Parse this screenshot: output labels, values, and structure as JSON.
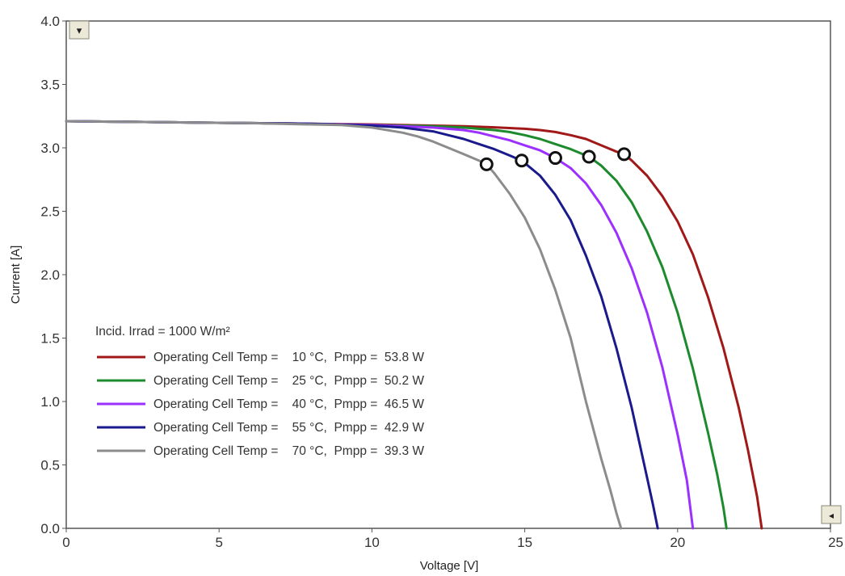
{
  "chart_data": {
    "type": "line",
    "title": "",
    "xlabel": "Voltage [V]",
    "ylabel": "Current [A]",
    "xlim": [
      0,
      25
    ],
    "ylim": [
      0,
      4.0
    ],
    "x_ticks": [
      "0",
      "5",
      "10",
      "15",
      "20",
      "25"
    ],
    "y_ticks": [
      "0.0",
      "0.5",
      "1.0",
      "1.5",
      "2.0",
      "2.5",
      "3.0",
      "3.5",
      "4.0"
    ],
    "grid": false,
    "legend_position": "lower-left",
    "legend_header": "Incid. Irrad = 1000 W/m²",
    "mpp_marker": "open-circle",
    "series": [
      {
        "name": "Operating Cell Temp =    10 °C,  Pmpp =  53.8 W",
        "color": "#a01818",
        "mpp": [
          18.25,
          2.95
        ],
        "x": [
          0,
          2,
          4,
          6,
          8,
          10,
          12,
          13,
          14,
          15,
          15.5,
          16,
          16.5,
          17,
          17.5,
          18,
          18.25,
          18.5,
          19,
          19.5,
          20,
          20.5,
          21,
          21.5,
          22,
          22.3,
          22.6,
          22.75
        ],
        "y": [
          3.21,
          3.205,
          3.2,
          3.195,
          3.19,
          3.185,
          3.175,
          3.17,
          3.162,
          3.15,
          3.14,
          3.125,
          3.1,
          3.07,
          3.02,
          2.97,
          2.95,
          2.9,
          2.78,
          2.62,
          2.42,
          2.16,
          1.82,
          1.42,
          0.95,
          0.62,
          0.25,
          0.0
        ]
      },
      {
        "name": "Operating Cell Temp =    25 °C,  Pmpp =  50.2 W",
        "color": "#1e8a2e",
        "mpp": [
          17.1,
          2.93
        ],
        "x": [
          0,
          2,
          4,
          6,
          8,
          10,
          11,
          12,
          13,
          14,
          14.5,
          15,
          15.5,
          16,
          16.5,
          17.1,
          17.5,
          18,
          18.5,
          19,
          19.5,
          20,
          20.5,
          21,
          21.3,
          21.5,
          21.6
        ],
        "y": [
          3.21,
          3.205,
          3.2,
          3.195,
          3.19,
          3.18,
          3.175,
          3.17,
          3.16,
          3.14,
          3.125,
          3.1,
          3.07,
          3.03,
          2.99,
          2.93,
          2.86,
          2.74,
          2.57,
          2.34,
          2.06,
          1.7,
          1.26,
          0.75,
          0.42,
          0.16,
          0.0
        ]
      },
      {
        "name": "Operating Cell Temp =    40 °C,  Pmpp =  46.5 W",
        "color": "#9b30ff",
        "mpp": [
          16.0,
          2.92
        ],
        "x": [
          0,
          2,
          4,
          6,
          8,
          10,
          11,
          12,
          13,
          13.5,
          14,
          14.5,
          15,
          15.5,
          16,
          16.5,
          17,
          17.5,
          18,
          18.5,
          19,
          19.5,
          20,
          20.3,
          20.5
        ],
        "y": [
          3.21,
          3.205,
          3.2,
          3.195,
          3.19,
          3.18,
          3.17,
          3.16,
          3.14,
          3.12,
          3.09,
          3.06,
          3.02,
          2.98,
          2.92,
          2.84,
          2.72,
          2.55,
          2.33,
          2.05,
          1.7,
          1.27,
          0.74,
          0.38,
          0.0
        ]
      },
      {
        "name": "Operating Cell Temp =    55 °C,  Pmpp =  42.9 W",
        "color": "#1a1a8c",
        "mpp": [
          14.9,
          2.9
        ],
        "x": [
          0,
          2,
          4,
          6,
          8,
          10,
          11,
          12,
          12.5,
          13,
          13.5,
          14,
          14.5,
          14.9,
          15.5,
          16,
          16.5,
          17,
          17.5,
          18,
          18.5,
          19,
          19.2,
          19.35
        ],
        "y": [
          3.21,
          3.205,
          3.2,
          3.195,
          3.19,
          3.175,
          3.16,
          3.13,
          3.1,
          3.07,
          3.03,
          2.99,
          2.94,
          2.9,
          2.78,
          2.63,
          2.43,
          2.15,
          1.83,
          1.42,
          0.95,
          0.4,
          0.18,
          0.0
        ]
      },
      {
        "name": "Operating Cell Temp =    70 °C,  Pmpp =  39.3 W",
        "color": "#8c8c8c",
        "mpp": [
          13.75,
          2.87
        ],
        "x": [
          0,
          2,
          4,
          6,
          8,
          9,
          10,
          11,
          11.5,
          12,
          12.5,
          13,
          13.5,
          13.75,
          14,
          14.5,
          15,
          15.5,
          16,
          16.5,
          17,
          17.5,
          17.8,
          18.0,
          18.15
        ],
        "y": [
          3.21,
          3.205,
          3.2,
          3.195,
          3.185,
          3.18,
          3.16,
          3.12,
          3.09,
          3.05,
          3.0,
          2.95,
          2.9,
          2.87,
          2.8,
          2.64,
          2.45,
          2.2,
          1.88,
          1.5,
          1.0,
          0.55,
          0.3,
          0.12,
          0.0
        ]
      }
    ]
  },
  "controls": {
    "top_left_button_symbol": "▾",
    "bottom_right_button_symbol": "◂"
  }
}
